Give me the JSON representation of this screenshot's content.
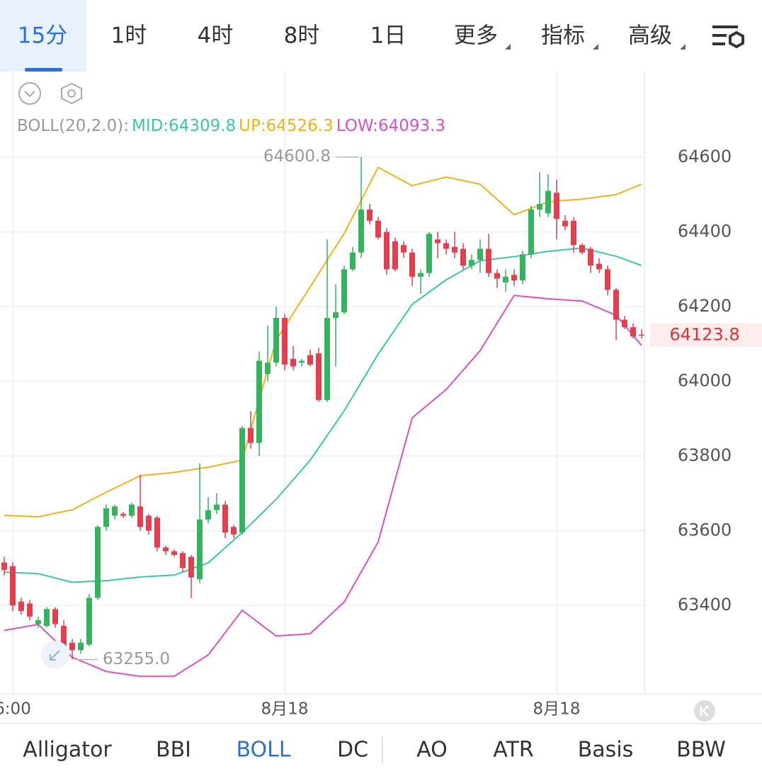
{
  "tabs": [
    "15分",
    "1时",
    "4时",
    "8时",
    "1日",
    "更多",
    "指标",
    "高级"
  ],
  "indicator_tabs": [
    "Alligator",
    "BBI",
    "BOLL",
    "DC",
    "AO",
    "ATR",
    "Basis",
    "BBW"
  ],
  "chart_data": {
    "type": "candlestick",
    "legend_title": "BOLL(20,2.0):",
    "categories": [
      null,
      "6:00",
      null,
      null,
      null,
      null,
      null,
      null,
      null,
      null,
      null,
      null,
      null,
      null,
      null,
      null,
      null,
      null,
      null,
      null,
      null,
      null,
      null,
      null,
      null,
      null,
      null,
      null,
      null,
      null,
      null,
      null,
      null,
      "8月18",
      null,
      null,
      null,
      null,
      null,
      null,
      null,
      null,
      null,
      null,
      null,
      null,
      null,
      null,
      null,
      null,
      null,
      null,
      null,
      null,
      null,
      null,
      null,
      null,
      null,
      null,
      null,
      null,
      null,
      null,
      null,
      "8月18",
      null,
      null,
      null,
      null,
      null,
      null,
      null,
      null,
      null,
      null
    ],
    "open": [
      63515,
      63505,
      63410,
      63405,
      63350,
      63345,
      63390,
      63345,
      63300,
      63280,
      63295,
      63420,
      63610,
      63640,
      63645,
      63640,
      63665,
      63640,
      63635,
      63555,
      63545,
      63540,
      63530,
      63470,
      63630,
      63655,
      63670,
      63610,
      63595,
      63875,
      63835,
      64020,
      64050,
      64170,
      64060,
      64050,
      64070,
      64075,
      63950,
      64170,
      64185,
      64300,
      64345,
      64460,
      64430,
      64400,
      64375,
      64365,
      64345,
      64280,
      64290,
      64380,
      64370,
      64360,
      64355,
      64310,
      64325,
      64355,
      64290,
      64265,
      64285,
      64270,
      64340,
      64460,
      64450,
      64505,
      64430,
      64430,
      64365,
      64355,
      64315,
      64300,
      64245,
      64165,
      64145,
      64125
    ],
    "high": [
      63530,
      63515,
      63420,
      63415,
      63370,
      63395,
      63395,
      63360,
      63310,
      63310,
      63430,
      63615,
      63670,
      63670,
      63650,
      63675,
      63750,
      63645,
      63640,
      63560,
      63550,
      63545,
      63535,
      63780,
      63690,
      63700,
      63680,
      63615,
      63880,
      63920,
      64080,
      64150,
      64200,
      64180,
      64095,
      64060,
      64085,
      64090,
      64380,
      64260,
      64310,
      64360,
      64600.8,
      64475,
      64440,
      64410,
      64385,
      64375,
      64355,
      64300,
      64400,
      64400,
      64380,
      64400,
      64370,
      64340,
      64380,
      64395,
      64300,
      64300,
      64300,
      64350,
      64470,
      64560,
      64555,
      64540,
      64445,
      64440,
      64370,
      64360,
      64330,
      64310,
      64250,
      64175,
      64155,
      64140
    ],
    "low": [
      63480,
      63385,
      63375,
      63360,
      63340,
      63340,
      63340,
      63280,
      63255,
      63270,
      63290,
      63415,
      63600,
      63630,
      63635,
      63635,
      63600,
      63590,
      63545,
      63535,
      63530,
      63490,
      63420,
      63460,
      63620,
      63645,
      63580,
      63580,
      63590,
      63820,
      63800,
      64000,
      64040,
      64030,
      64030,
      64040,
      64040,
      63945,
      63945,
      64040,
      64180,
      64295,
      64330,
      64420,
      64380,
      64285,
      64295,
      64330,
      64255,
      64235,
      64280,
      64330,
      64340,
      64330,
      64300,
      64300,
      64290,
      64280,
      64250,
      64240,
      64255,
      64260,
      64330,
      64440,
      64440,
      64380,
      64405,
      64345,
      64340,
      64290,
      64290,
      64230,
      64110,
      64140,
      64115,
      64115
    ],
    "close": [
      63495,
      63400,
      63385,
      63370,
      63360,
      63390,
      63350,
      63290,
      63280,
      63300,
      63420,
      63610,
      63660,
      63665,
      63640,
      63670,
      63610,
      63600,
      63555,
      63545,
      63535,
      63500,
      63475,
      63630,
      63655,
      63670,
      63595,
      63590,
      63875,
      63835,
      64055,
      64050,
      64170,
      64045,
      64040,
      64055,
      64045,
      63950,
      64170,
      64185,
      64300,
      64345,
      64460,
      64430,
      64385,
      64300,
      64300,
      64345,
      64280,
      64290,
      64395,
      64370,
      64355,
      64345,
      64310,
      64325,
      64355,
      64290,
      64275,
      64280,
      64270,
      64340,
      64460,
      64475,
      64510,
      64435,
      64415,
      64365,
      64345,
      64310,
      64300,
      64245,
      64165,
      64145,
      64120,
      64123.8
    ],
    "up_color": "#35b35e",
    "down_color": "#e2404f",
    "series": [
      {
        "name": "MID:64309.8",
        "color": "#3cc6a6",
        "x": [
          0,
          4,
          8,
          12,
          16,
          20,
          24,
          28,
          32,
          36,
          40,
          44,
          48,
          52,
          56,
          60,
          64,
          68,
          72,
          75
        ],
        "values": [
          63489,
          63485,
          63462,
          63466,
          63476,
          63481,
          63514,
          63595,
          63684,
          63789,
          63921,
          64073,
          64206,
          64272,
          64323,
          64334,
          64348,
          64357,
          64335,
          64310
        ]
      },
      {
        "name": "UP:64526.3",
        "color": "#eeb31c",
        "x": [
          0,
          4,
          8,
          12,
          16,
          20,
          24,
          28,
          32,
          36,
          40,
          44,
          48,
          52,
          56,
          60,
          64,
          68,
          72,
          75
        ],
        "values": [
          63641,
          63637,
          63656,
          63703,
          63747,
          63756,
          63770,
          63789,
          64111,
          64253,
          64396,
          64573,
          64524,
          64547,
          64528,
          64446,
          64481,
          64488,
          64500,
          64528
        ]
      },
      {
        "name": "LOW:64093.3",
        "color": "#d652c4",
        "x": [
          0,
          4,
          8,
          12,
          16,
          20,
          24,
          28,
          32,
          36,
          40,
          44,
          48,
          52,
          56,
          60,
          64,
          68,
          72,
          75
        ],
        "values": [
          63333,
          63349,
          63261,
          63223,
          63210,
          63210,
          63267,
          63387,
          63318,
          63324,
          63409,
          63570,
          63902,
          63978,
          64082,
          64230,
          64221,
          64215,
          64177,
          64096
        ]
      }
    ],
    "max_marker": 64600.8,
    "min_marker": {
      "value": 63255,
      "label": "63255.0"
    },
    "last_price": 64123.8,
    "ylim": [
      63163,
      64642
    ],
    "yticks": [
      63400,
      63600,
      63800,
      64000,
      64200,
      64400,
      64600
    ],
    "grid": true
  }
}
